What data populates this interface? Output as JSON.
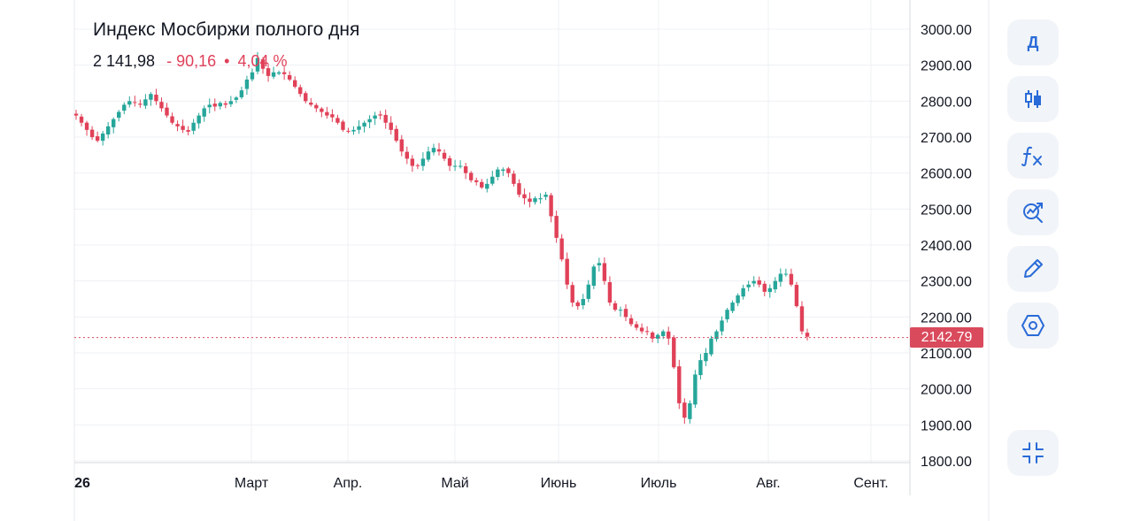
{
  "header": {
    "title": "Индекс Мосбиржи полного дня",
    "price": "2 141,98",
    "change": "- 90,16",
    "separator": "•",
    "change_pct": "4,04 %"
  },
  "last_price_label": "2142.79",
  "colors": {
    "up": "#26a69a",
    "down": "#e04158",
    "accent": "#2a6bd8",
    "price_line": "#d94a5c"
  },
  "toolbar": {
    "interval_label": "Д",
    "items": [
      "interval",
      "candles-icon",
      "indicators-fx-icon",
      "compare-search-icon",
      "pencil-icon",
      "settings-hex-icon"
    ],
    "bottom": "collapse-icon"
  },
  "chart_data": {
    "type": "candlestick",
    "title": "Индекс Мосбиржи полного дня",
    "ylim": [
      1800,
      3000
    ],
    "y_ticks": [
      "3000.00",
      "2900.00",
      "2800.00",
      "2700.00",
      "2600.00",
      "2500.00",
      "2400.00",
      "2300.00",
      "2200.00",
      "2100.00",
      "2000.00",
      "1900.00",
      "1800.00"
    ],
    "x_ticks": [
      "26",
      "Март",
      "Апр.",
      "Май",
      "Июнь",
      "Июль",
      "Авг.",
      "Сент."
    ],
    "last_price": 2142.79,
    "grid": true,
    "close": [
      2760,
      2740,
      2720,
      2700,
      2690,
      2710,
      2730,
      2750,
      2770,
      2790,
      2800,
      2795,
      2790,
      2805,
      2820,
      2800,
      2780,
      2760,
      2740,
      2730,
      2720,
      2715,
      2740,
      2760,
      2780,
      2790,
      2785,
      2795,
      2790,
      2800,
      2810,
      2830,
      2860,
      2880,
      2920,
      2890,
      2870,
      2880,
      2880,
      2875,
      2860,
      2840,
      2820,
      2800,
      2790,
      2780,
      2770,
      2760,
      2755,
      2740,
      2720,
      2715,
      2720,
      2730,
      2740,
      2750,
      2760,
      2760,
      2740,
      2720,
      2690,
      2660,
      2640,
      2620,
      2620,
      2640,
      2660,
      2670,
      2660,
      2640,
      2620,
      2620,
      2620,
      2600,
      2580,
      2575,
      2560,
      2570,
      2590,
      2610,
      2610,
      2600,
      2570,
      2540,
      2530,
      2520,
      2530,
      2530,
      2540,
      2480,
      2420,
      2360,
      2290,
      2240,
      2230,
      2250,
      2290,
      2340,
      2350,
      2300,
      2240,
      2220,
      2220,
      2200,
      2180,
      2170,
      2160,
      2160,
      2140,
      2150,
      2160,
      2140,
      2060,
      1960,
      1920,
      1960,
      2040,
      2080,
      2100,
      2140,
      2160,
      2190,
      2220,
      2240,
      2260,
      2280,
      2290,
      2300,
      2290,
      2270,
      2280,
      2300,
      2320,
      2320,
      2290,
      2230,
      2160,
      2145
    ]
  }
}
